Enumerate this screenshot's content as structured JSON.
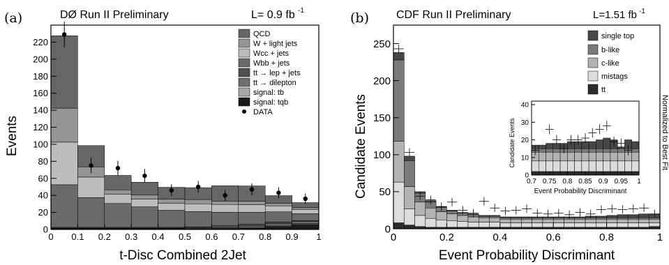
{
  "panels": [
    {
      "tag": "(a)",
      "header": "DØ Run II Preliminary",
      "lumi": "L= 0.9 fb",
      "lumi_sup": "-1",
      "xlabel": "t-Disc Combined 2Jet",
      "ylabel": "Events",
      "legend": [
        "QCD",
        "W + light jets",
        "Wcc + jets",
        "Wbb + jets",
        "tt → lep + jets",
        "tt → dilepton",
        "signal: tb",
        "signal: tqb",
        "DATA"
      ]
    },
    {
      "tag": "(b)",
      "header": "CDF Run II Preliminary",
      "lumi": "L=1.51 fb",
      "lumi_sup": "-1",
      "xlabel": "Event Probability Discriminant",
      "ylabel": "Candidate Events",
      "side_note": "Normalized to Best Fit",
      "legend": [
        "single top",
        "b-like",
        "c-like",
        "mistags",
        "tt"
      ],
      "inset_xlabel": "Event Probability Discriminant",
      "inset_ylabel": "Candidate Events"
    }
  ],
  "chart_data": [
    {
      "type": "bar",
      "stacked": true,
      "x_edges": [
        0,
        0.1,
        0.2,
        0.3,
        0.4,
        0.5,
        0.6,
        0.7,
        0.8,
        0.9,
        1.0
      ],
      "xlim": [
        0,
        1
      ],
      "ylim": [
        0,
        240
      ],
      "xticks": [
        0,
        0.1,
        0.2,
        0.3,
        0.4,
        0.5,
        0.6,
        0.7,
        0.8,
        0.9,
        1
      ],
      "yticks": [
        0,
        20,
        40,
        60,
        80,
        100,
        120,
        140,
        160,
        180,
        200,
        220
      ],
      "series": [
        {
          "name": "signal: tqb",
          "color": "#1a1a1a",
          "values": [
            0.5,
            0.5,
            0.5,
            0.5,
            0.5,
            0.6,
            0.8,
            1.5,
            3.5,
            6
          ]
        },
        {
          "name": "signal: tb",
          "color": "#a8a8a8",
          "values": [
            0.5,
            0.5,
            0.5,
            0.5,
            0.5,
            0.5,
            0.5,
            0.6,
            0.7,
            1
          ]
        },
        {
          "name": "tt → dilepton",
          "color": "#6e6e6e",
          "values": [
            0.5,
            0.5,
            0.5,
            0.5,
            0.5,
            1,
            1,
            2,
            2.5,
            2.5
          ]
        },
        {
          "name": "tt → lep + jets",
          "color": "#4f4f4f",
          "values": [
            1,
            1,
            1,
            1,
            1,
            1,
            2,
            2,
            2,
            1
          ]
        },
        {
          "name": "Wbb + jets",
          "color": "#6a6a6a",
          "values": [
            50,
            35,
            28,
            24,
            20,
            18,
            16,
            14,
            12,
            8
          ]
        },
        {
          "name": "Wcc + jets",
          "color": "#bdbdbd",
          "values": [
            50,
            24,
            11,
            9,
            8,
            9,
            9,
            9,
            7,
            5
          ]
        },
        {
          "name": "W + light jets",
          "color": "#959595",
          "values": [
            40,
            12,
            5,
            5,
            5,
            5,
            4,
            4,
            3,
            2
          ]
        },
        {
          "name": "QCD",
          "color": "#666666",
          "values": [
            85,
            25,
            17,
            15,
            14,
            14,
            18,
            18,
            9,
            6
          ]
        }
      ],
      "data_points": {
        "name": "DATA",
        "x": [
          0.05,
          0.15,
          0.25,
          0.35,
          0.45,
          0.55,
          0.65,
          0.75,
          0.85,
          0.95
        ],
        "y": [
          229,
          75,
          72,
          63,
          46,
          50,
          40,
          47,
          43,
          36
        ],
        "err": [
          15,
          9,
          8.5,
          8,
          7,
          7,
          6.5,
          7,
          6.5,
          6
        ]
      }
    },
    {
      "type": "bar",
      "stacked": true,
      "x_edges": [
        0,
        0.04,
        0.08,
        0.12,
        0.16,
        0.2,
        0.24,
        0.28,
        0.32,
        0.36,
        0.4,
        0.44,
        0.48,
        0.52,
        0.56,
        0.6,
        0.64,
        0.68,
        0.72,
        0.76,
        0.8,
        0.84,
        0.88,
        0.92,
        0.96,
        1.0
      ],
      "xlim": [
        0,
        1
      ],
      "ylim": [
        0,
        275
      ],
      "xticks": [
        0,
        0.2,
        0.4,
        0.6,
        0.8,
        1
      ],
      "yticks": [
        0,
        50,
        100,
        150,
        200,
        250
      ],
      "series": [
        {
          "name": "tt",
          "color": "#2b2b2b",
          "values": [
            8,
            5,
            3,
            2,
            2,
            2,
            2,
            2,
            2,
            2,
            2,
            2,
            2,
            2,
            2,
            2,
            2,
            2,
            2,
            2,
            2,
            2,
            2,
            2,
            3
          ]
        },
        {
          "name": "mistags",
          "color": "#dcdcdc",
          "values": [
            55,
            22,
            15,
            12,
            10,
            9,
            8,
            7,
            7,
            7,
            6,
            6,
            6,
            6,
            6,
            6,
            6,
            6,
            6,
            6,
            6,
            6,
            6,
            6,
            5
          ]
        },
        {
          "name": "c-like",
          "color": "#b3b3b3",
          "values": [
            55,
            30,
            18,
            14,
            11,
            9,
            8,
            7,
            6,
            6,
            5,
            5,
            5,
            5,
            5,
            5,
            5,
            5,
            5,
            5,
            5,
            5,
            5,
            5,
            5
          ]
        },
        {
          "name": "b-like",
          "color": "#7a7a7a",
          "values": [
            110,
            35,
            12,
            8,
            6,
            4,
            3,
            3,
            2,
            2,
            2,
            2,
            2,
            2,
            2,
            2,
            2,
            2,
            2,
            2,
            2,
            2,
            2,
            2,
            2
          ]
        },
        {
          "name": "single top",
          "color": "#474747",
          "values": [
            10,
            6,
            2,
            2,
            1,
            1,
            1,
            1,
            1,
            1,
            1,
            1,
            1,
            1,
            1,
            1,
            1,
            1,
            2,
            2,
            3,
            4,
            4,
            5,
            5
          ]
        }
      ],
      "data_points": {
        "name": "data",
        "x": [
          0.02,
          0.06,
          0.1,
          0.14,
          0.18,
          0.22,
          0.26,
          0.3,
          0.34,
          0.38,
          0.42,
          0.46,
          0.5,
          0.54,
          0.58,
          0.62,
          0.66,
          0.7,
          0.74,
          0.78,
          0.82,
          0.86,
          0.9,
          0.94,
          0.98
        ],
        "y": [
          243,
          103,
          44,
          39,
          30,
          36,
          25,
          21,
          37,
          28,
          24,
          25,
          27,
          21,
          20,
          21,
          19,
          22,
          20,
          26,
          27,
          26,
          27,
          28,
          20
        ]
      },
      "inset": {
        "x_edges": [
          0.7,
          0.72,
          0.74,
          0.76,
          0.78,
          0.8,
          0.82,
          0.84,
          0.86,
          0.88,
          0.9,
          0.92,
          0.94,
          0.96,
          0.98,
          1.0
        ],
        "xlim": [
          0.7,
          1.0
        ],
        "ylim": [
          0,
          42
        ],
        "xticks": [
          0.7,
          0.75,
          0.8,
          0.85,
          0.9,
          0.95,
          1
        ],
        "yticks": [
          0,
          10,
          20,
          30,
          40
        ],
        "series": [
          {
            "name": "tt",
            "color": "#2b2b2b",
            "values": [
              2,
              2,
              2,
              2,
              2,
              2,
              2,
              2,
              2,
              2,
              2,
              2,
              2,
              2,
              2
            ]
          },
          {
            "name": "mistags",
            "color": "#dcdcdc",
            "values": [
              6,
              6,
              6,
              6,
              6,
              6,
              6,
              6,
              6,
              6,
              6,
              6,
              6,
              6,
              6
            ]
          },
          {
            "name": "c-like",
            "color": "#b3b3b3",
            "values": [
              5,
              5,
              5,
              5,
              5,
              5,
              5,
              5,
              5,
              5,
              5,
              5,
              5,
              5,
              5
            ]
          },
          {
            "name": "b-like",
            "color": "#7a7a7a",
            "values": [
              2,
              2,
              2,
              2,
              2,
              2,
              2,
              2,
              2,
              2,
              2,
              2,
              2,
              2,
              2
            ]
          },
          {
            "name": "single top",
            "color": "#474747",
            "values": [
              2,
              2,
              3,
              3,
              3,
              4,
              4,
              4,
              4,
              5,
              6,
              5,
              1,
              5,
              4
            ]
          }
        ],
        "data_points": {
          "x": [
            0.71,
            0.75,
            0.77,
            0.79,
            0.81,
            0.83,
            0.85,
            0.87,
            0.89,
            0.91,
            0.93,
            0.95,
            0.97
          ],
          "y": [
            14,
            26,
            20,
            15,
            20,
            20,
            21,
            24,
            26,
            28,
            19,
            18,
            14
          ]
        }
      }
    }
  ]
}
